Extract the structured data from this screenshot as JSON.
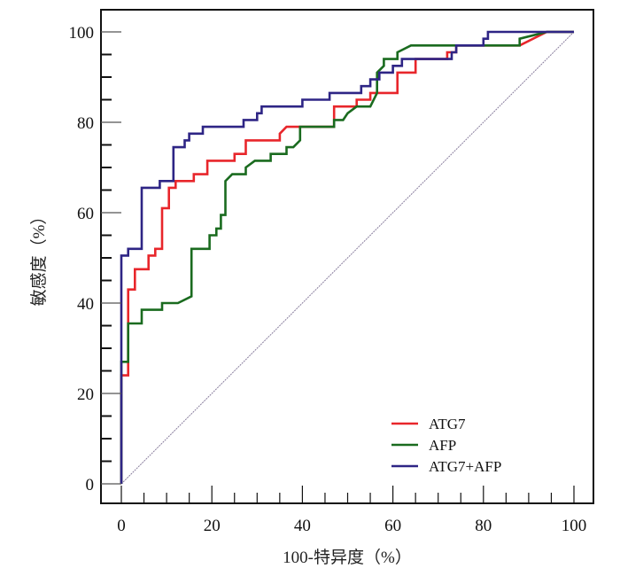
{
  "chart_data": {
    "type": "line",
    "title": "",
    "xlabel": "100-特异度（%）",
    "ylabel": "敏感度（%）",
    "xlim": [
      0,
      100
    ],
    "ylim": [
      0,
      100
    ],
    "x_ticks": [
      0,
      20,
      40,
      60,
      80,
      100
    ],
    "y_ticks": [
      0,
      20,
      40,
      60,
      80,
      100
    ],
    "x_tick_labels": [
      "0",
      "20",
      "40",
      "60",
      "80",
      "100"
    ],
    "y_tick_labels": [
      "0",
      "20",
      "40",
      "60",
      "80",
      "100"
    ],
    "minor_tick_step": 5,
    "grid": false,
    "legend": "bottom-right",
    "reference_line": {
      "name": "chance diagonal",
      "points": [
        [
          0,
          0
        ],
        [
          100,
          100
        ]
      ],
      "color": "#8a7f9e"
    },
    "series": [
      {
        "name": "ATG7",
        "color": "#e8262b",
        "points": [
          [
            0,
            0
          ],
          [
            0,
            24
          ],
          [
            1.5,
            24
          ],
          [
            1.5,
            43
          ],
          [
            3,
            43
          ],
          [
            3,
            47.5
          ],
          [
            6,
            47.5
          ],
          [
            6,
            50.5
          ],
          [
            7.5,
            50.5
          ],
          [
            7.5,
            52
          ],
          [
            9,
            52
          ],
          [
            9,
            61
          ],
          [
            10.5,
            61
          ],
          [
            10.5,
            65.5
          ],
          [
            12,
            65.5
          ],
          [
            12,
            67
          ],
          [
            16,
            67
          ],
          [
            16,
            68.5
          ],
          [
            19,
            68.5
          ],
          [
            19,
            71.5
          ],
          [
            25,
            71.5
          ],
          [
            25,
            73
          ],
          [
            27.5,
            73
          ],
          [
            27.5,
            76
          ],
          [
            35,
            76
          ],
          [
            35,
            77.5
          ],
          [
            36.5,
            79
          ],
          [
            47,
            79
          ],
          [
            47,
            80.5
          ],
          [
            47,
            83.5
          ],
          [
            52,
            83.5
          ],
          [
            52,
            85
          ],
          [
            55,
            85
          ],
          [
            55,
            86.5
          ],
          [
            61,
            86.5
          ],
          [
            61,
            91
          ],
          [
            65,
            91
          ],
          [
            65,
            94
          ],
          [
            72,
            94
          ],
          [
            72,
            95.5
          ],
          [
            74,
            95.5
          ],
          [
            74,
            97
          ],
          [
            88,
            97
          ],
          [
            94,
            100
          ],
          [
            100,
            100
          ]
        ]
      },
      {
        "name": "AFP",
        "color": "#1a6b1f",
        "points": [
          [
            0,
            0
          ],
          [
            0,
            27
          ],
          [
            1.5,
            27
          ],
          [
            1.5,
            35.5
          ],
          [
            4.5,
            35.5
          ],
          [
            4.5,
            38.5
          ],
          [
            9,
            38.5
          ],
          [
            9,
            40
          ],
          [
            12.5,
            40
          ],
          [
            15.5,
            41.5
          ],
          [
            15.5,
            52
          ],
          [
            19.5,
            52
          ],
          [
            19.5,
            55
          ],
          [
            21,
            55
          ],
          [
            21,
            56.5
          ],
          [
            22,
            56.5
          ],
          [
            22,
            59.5
          ],
          [
            23,
            59.5
          ],
          [
            23,
            67
          ],
          [
            24.5,
            68.5
          ],
          [
            27.5,
            68.5
          ],
          [
            27.5,
            70
          ],
          [
            29.5,
            71.5
          ],
          [
            33,
            71.5
          ],
          [
            33,
            73
          ],
          [
            36.5,
            73
          ],
          [
            36.5,
            74.5
          ],
          [
            38,
            74.5
          ],
          [
            39.5,
            76
          ],
          [
            39.5,
            79
          ],
          [
            47,
            79
          ],
          [
            47,
            80.5
          ],
          [
            49,
            80.5
          ],
          [
            50,
            82
          ],
          [
            52,
            83.5
          ],
          [
            55,
            83.5
          ],
          [
            56.5,
            86.5
          ],
          [
            56.5,
            91
          ],
          [
            58,
            92.5
          ],
          [
            58,
            94
          ],
          [
            61,
            94
          ],
          [
            61,
            95.5
          ],
          [
            64,
            97
          ],
          [
            73,
            97
          ],
          [
            73,
            97
          ],
          [
            88,
            97
          ],
          [
            88,
            98.5
          ],
          [
            94,
            100
          ],
          [
            100,
            100
          ]
        ]
      },
      {
        "name": "ATG7+AFP",
        "color": "#2e2585",
        "points": [
          [
            0,
            0
          ],
          [
            0,
            50.5
          ],
          [
            1.5,
            50.5
          ],
          [
            1.5,
            52
          ],
          [
            4.5,
            52
          ],
          [
            4.5,
            65.5
          ],
          [
            8.5,
            65.5
          ],
          [
            8.5,
            67
          ],
          [
            11.5,
            67
          ],
          [
            11.5,
            74.5
          ],
          [
            14,
            74.5
          ],
          [
            14,
            76
          ],
          [
            15,
            76
          ],
          [
            15,
            77.5
          ],
          [
            18,
            77.5
          ],
          [
            18,
            79
          ],
          [
            27,
            79
          ],
          [
            27,
            80.5
          ],
          [
            30,
            80.5
          ],
          [
            30,
            82
          ],
          [
            31,
            82
          ],
          [
            31,
            83.5
          ],
          [
            40,
            83.5
          ],
          [
            40,
            85
          ],
          [
            46,
            85
          ],
          [
            46,
            86.5
          ],
          [
            53,
            86.5
          ],
          [
            53,
            88
          ],
          [
            55,
            88
          ],
          [
            55,
            89.5
          ],
          [
            57,
            89.5
          ],
          [
            57,
            91
          ],
          [
            60,
            91
          ],
          [
            60,
            92.5
          ],
          [
            62,
            92.5
          ],
          [
            62,
            94
          ],
          [
            73,
            94
          ],
          [
            73,
            95.5
          ],
          [
            74,
            95.5
          ],
          [
            74,
            97
          ],
          [
            80,
            97
          ],
          [
            80,
            98.5
          ],
          [
            81,
            98.5
          ],
          [
            81,
            100
          ],
          [
            100,
            100
          ]
        ]
      }
    ]
  }
}
